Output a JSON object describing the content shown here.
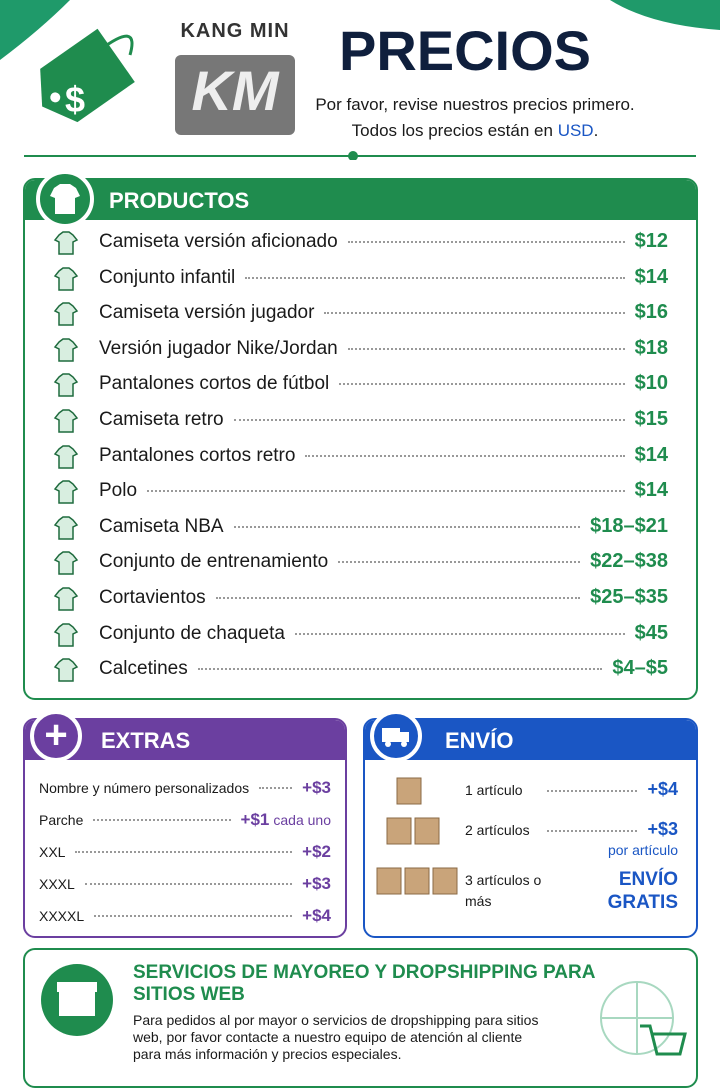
{
  "header": {
    "brand_top": "KANG MIN",
    "brand_logo": "KM",
    "title": "PRECIOS",
    "subtitle_line1": "Por favor, revise nuestros precios primero.",
    "subtitle_line2_prefix": "Todos los precios están en",
    "subtitle_line2_currency": "USD",
    "subtitle_line2_suffix": "."
  },
  "products": {
    "title": "PRODUCTOS",
    "items": [
      {
        "name": "Camiseta versión aficionado",
        "price": "$12"
      },
      {
        "name": "Conjunto infantil",
        "price": "$14"
      },
      {
        "name": "Camiseta versión jugador",
        "price": "$16"
      },
      {
        "name": "Versión jugador Nike/Jordan",
        "price": "$18"
      },
      {
        "name": "Pantalones cortos de fútbol",
        "price": "$10"
      },
      {
        "name": "Camiseta retro",
        "price": "$15"
      },
      {
        "name": "Pantalones cortos retro",
        "price": "$14"
      },
      {
        "name": "Polo",
        "price": "$14"
      },
      {
        "name": "Camiseta NBA",
        "price": "$18–$21"
      },
      {
        "name": "Conjunto de entrenamiento",
        "price": "$22–$38"
      },
      {
        "name": "Cortavientos",
        "price": "$25–$35"
      },
      {
        "name": "Conjunto de chaqueta",
        "price": "$45"
      },
      {
        "name": "Calcetines",
        "price": "$4–$5"
      }
    ]
  },
  "extras": {
    "title": "EXTRAS",
    "items": [
      {
        "name": "Nombre y número personalizados",
        "price": "+$3"
      },
      {
        "name": "Parche",
        "price": "+$1",
        "note": "cada uno"
      },
      {
        "name": "XXL",
        "price": "+$2"
      },
      {
        "name": "XXXL",
        "price": "+$3"
      },
      {
        "name": "XXXXL",
        "price": "+$4"
      }
    ]
  },
  "shipping": {
    "title": "ENVÍO",
    "items": [
      {
        "label": "1 artículo",
        "price": "+$4"
      },
      {
        "label": "2 artículos",
        "price": "+$3",
        "note": "por artículo"
      },
      {
        "label": "3 artículos o más",
        "price": "ENVÍO GRATIS"
      }
    ]
  },
  "wholesale": {
    "title": "SERVICIOS DE MAYOREO Y DROPSHIPPING PARA SITIOS WEB",
    "text": "Para pedidos al por mayor o servicios de dropshipping para sitios web, por favor contacte a nuestro equipo de atención al cliente para más información y precios especiales."
  }
}
